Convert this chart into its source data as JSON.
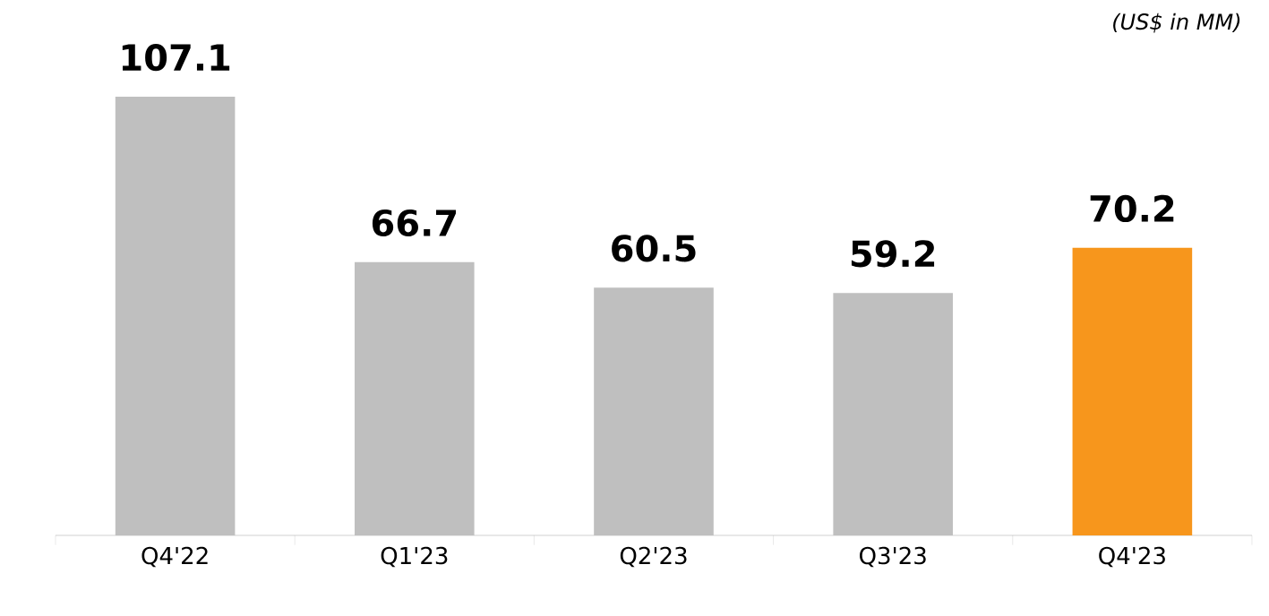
{
  "chart_data": {
    "type": "bar",
    "categories": [
      "Q4'22",
      "Q1'23",
      "Q2'23",
      "Q3'23",
      "Q4'23"
    ],
    "values": [
      107.1,
      66.7,
      60.5,
      59.2,
      70.2
    ],
    "colors": [
      "#bfbfbf",
      "#bfbfbf",
      "#bfbfbf",
      "#bfbfbf",
      "#f7961c"
    ],
    "data_labels": true,
    "annotations": [
      "(US$ in MM)"
    ]
  }
}
